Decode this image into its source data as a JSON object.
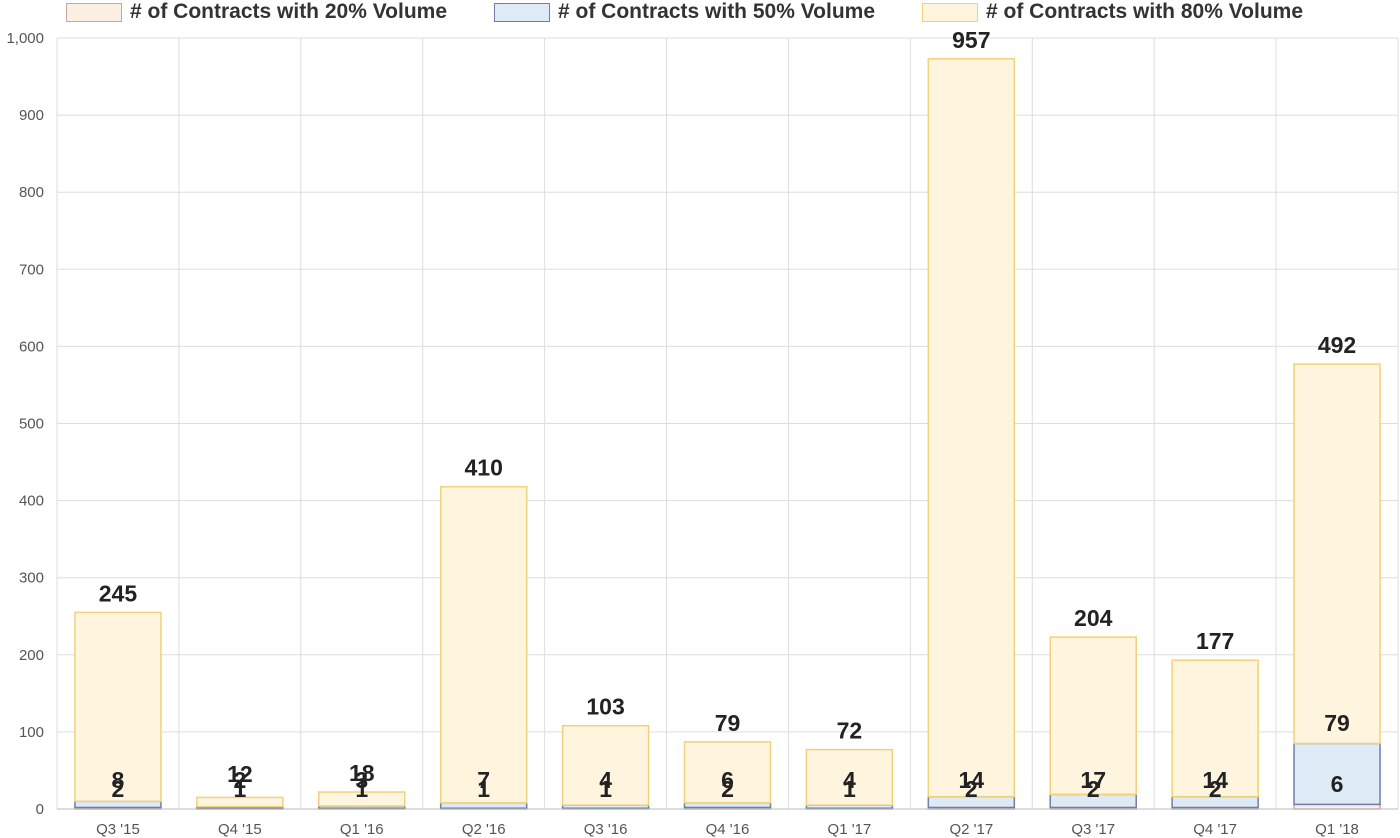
{
  "chart_data": {
    "type": "bar",
    "stacked": true,
    "categories": [
      "Q3 '15",
      "Q4 '15",
      "Q1 '16",
      "Q2 '16",
      "Q3 '16",
      "Q4 '16",
      "Q1 '17",
      "Q2 '17",
      "Q3 '17",
      "Q4 '17",
      "Q1 '18"
    ],
    "series": [
      {
        "name": "# of Contracts with 20% Volume",
        "fill": "#fbeee3",
        "stroke": "#c9a7a0",
        "values": [
          2,
          1,
          1,
          1,
          1,
          2,
          1,
          2,
          2,
          2,
          6
        ]
      },
      {
        "name": "# of Contracts with 50% Volume",
        "fill": "#deebf7",
        "stroke": "#6f7fa6",
        "values": [
          8,
          2,
          3,
          7,
          4,
          6,
          4,
          14,
          17,
          14,
          79
        ]
      },
      {
        "name": "# of Contracts with 80% Volume",
        "fill": "#fff4de",
        "stroke": "#f0d27a",
        "values": [
          245,
          12,
          18,
          410,
          103,
          79,
          72,
          957,
          204,
          177,
          492
        ]
      }
    ],
    "yticks": [
      "0",
      "100",
      "200",
      "300",
      "400",
      "500",
      "600",
      "700",
      "800",
      "900",
      "1,000"
    ],
    "ylim": [
      0,
      1000
    ],
    "grid": true,
    "legend_position": "top"
  }
}
